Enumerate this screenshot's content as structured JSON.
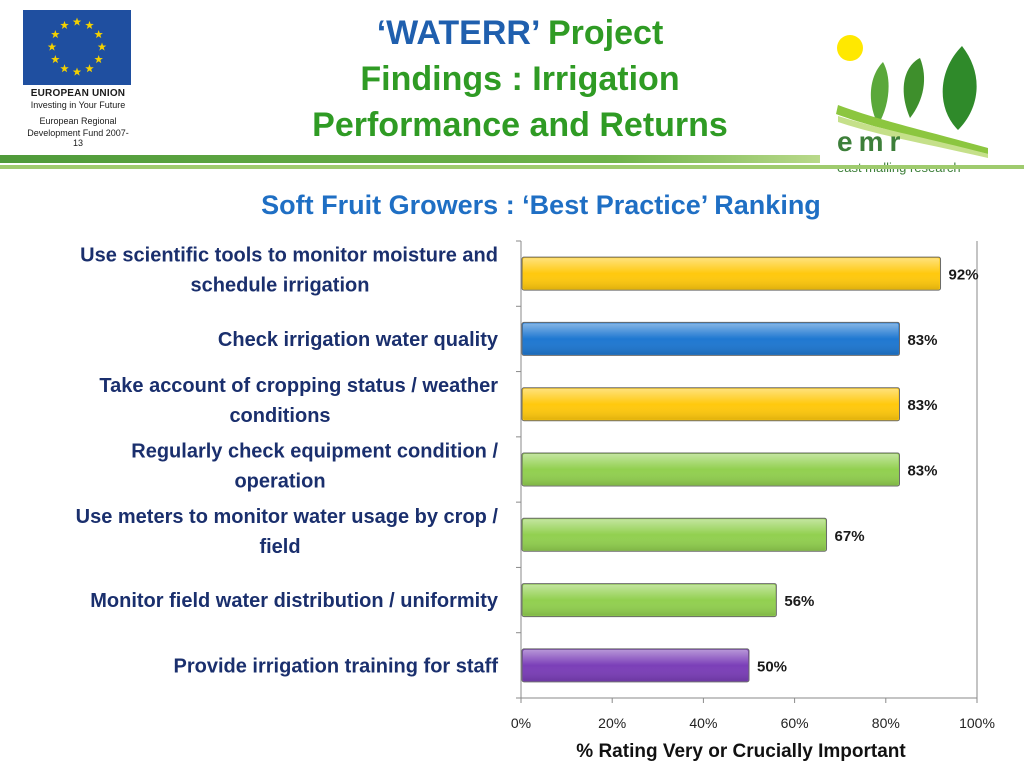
{
  "header": {
    "eu_logo": {
      "line1": "EUROPEAN UNION",
      "line2": "Investing in Your Future",
      "line3a": "European Regional",
      "line3b": "Development Fund 2007-13",
      "flag_color": "#1f4fa0",
      "star_color": "#f4d100"
    },
    "title": {
      "line1_quote_open": "‘",
      "line1_waterr": "WATERR",
      "line1_quote_close": "’",
      "line1_rest": " Project",
      "line2": "Findings : Irrigation",
      "line3": "Performance and Returns"
    },
    "emr_logo": {
      "name": "emr",
      "subtitle": "east malling research"
    }
  },
  "chart_data": {
    "type": "bar",
    "orientation": "horizontal",
    "title": "Soft Fruit Growers :  ‘Best Practice’ Ranking",
    "xlabel": "% Rating Very or Crucially Important",
    "xlim": [
      0,
      100
    ],
    "x_ticks": [
      "0%",
      "20%",
      "40%",
      "60%",
      "80%",
      "100%"
    ],
    "grid": "vertical line at 100% only",
    "categories": [
      [
        "Use scientific tools to monitor moisture and",
        "schedule irrigation"
      ],
      [
        "Check irrigation  water quality"
      ],
      [
        "Take account of cropping status / weather",
        "conditions"
      ],
      [
        "Regularly check equipment condition /",
        "operation"
      ],
      [
        "Use meters to monitor water usage by crop /",
        "field"
      ],
      [
        "Monitor field water distribution / uniformity"
      ],
      [
        "Provide irrigation training for staff"
      ]
    ],
    "values": [
      92,
      83,
      83,
      83,
      67,
      56,
      50
    ],
    "value_labels": [
      "92%",
      "83%",
      "83%",
      "83%",
      "67%",
      "56%",
      "50%"
    ],
    "colors": [
      "#ffc90e",
      "#1f78d1",
      "#ffc90e",
      "#92d050",
      "#92d050",
      "#92d050",
      "#7b3fb8"
    ]
  }
}
